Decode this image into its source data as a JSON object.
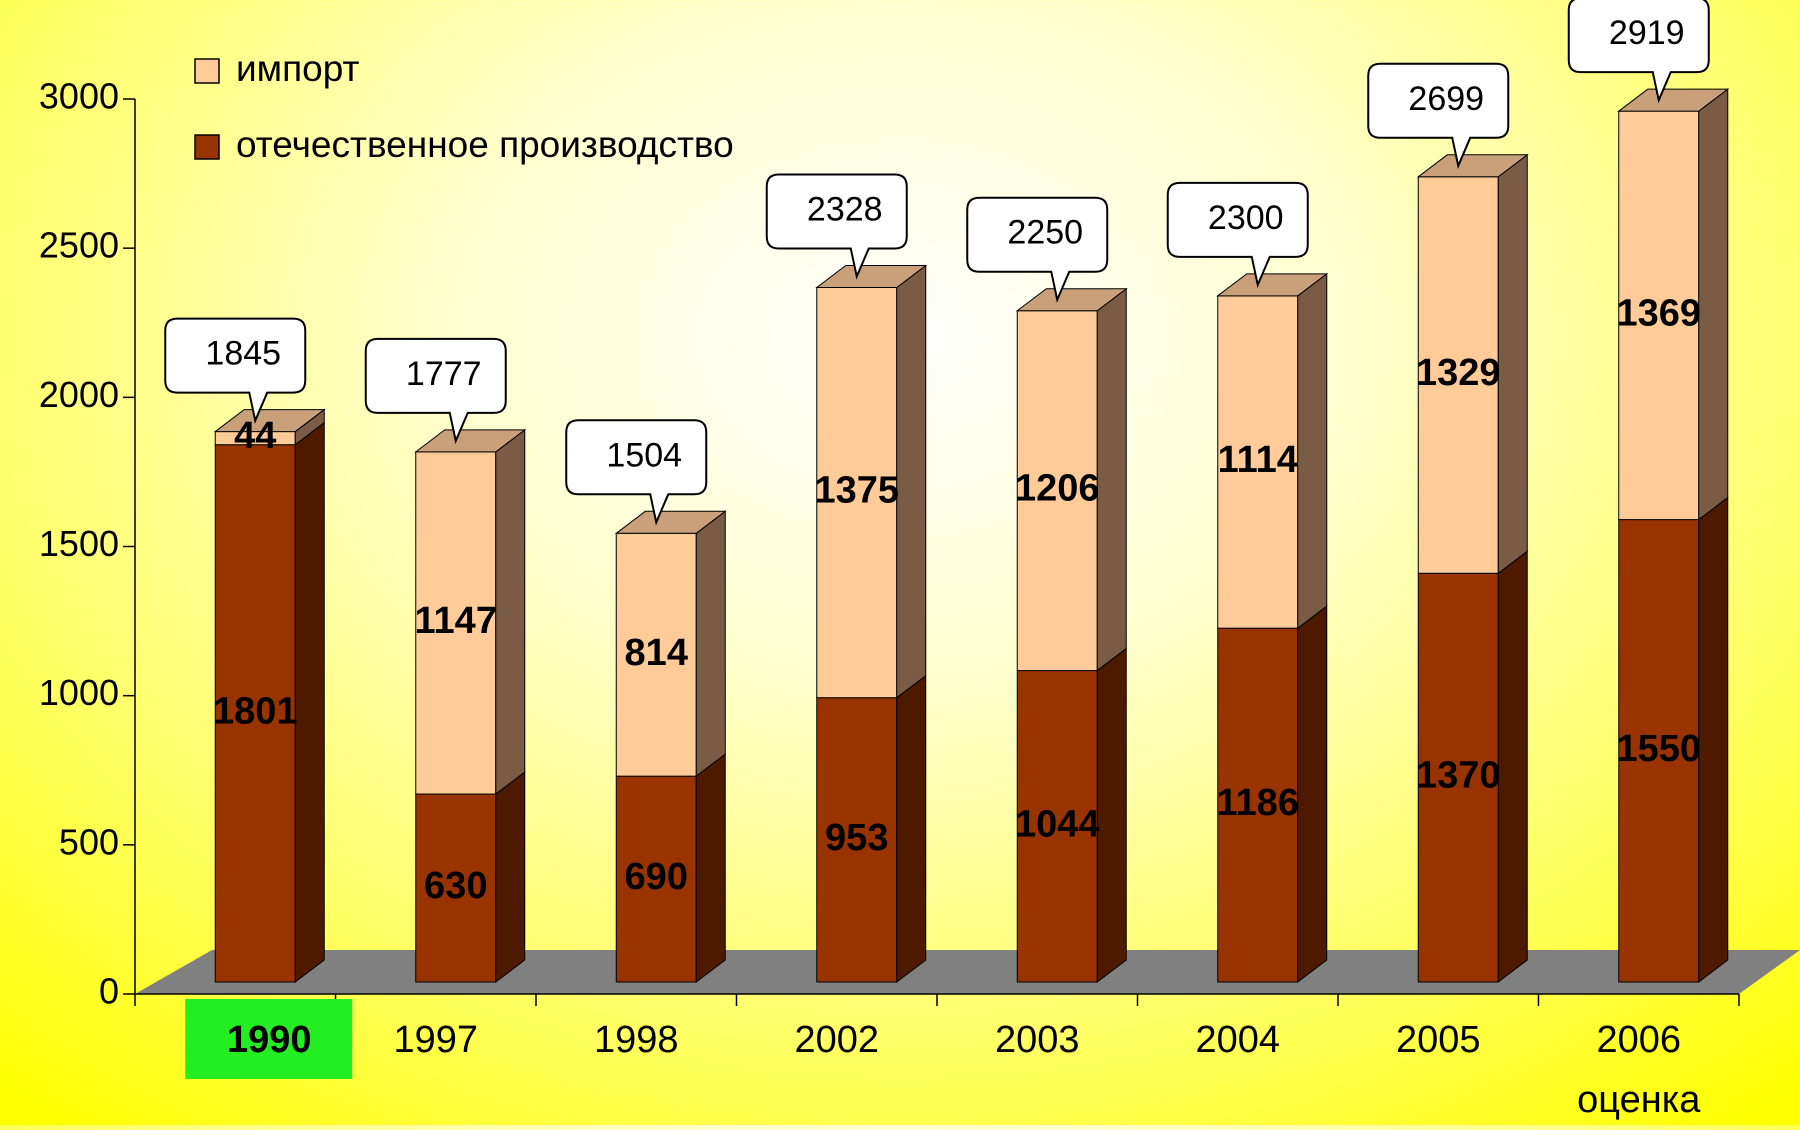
{
  "chart_data": {
    "type": "stacked_bar_3d",
    "categories": [
      "1990",
      "1997",
      "1998",
      "2002",
      "2003",
      "2004",
      "2005",
      "2006\nоценка"
    ],
    "category_label_backgrounds": [
      "#22ee22",
      null,
      null,
      null,
      null,
      null,
      null,
      null
    ],
    "series": [
      {
        "name": "импорт",
        "color": "#ffcc99",
        "side_color": "#7a5c45",
        "values": [
          44,
          1147,
          814,
          1375,
          1206,
          1114,
          1329,
          1369
        ]
      },
      {
        "name": "отечественное производство",
        "color": "#993300",
        "side_color": "#4d1a00",
        "values": [
          1801,
          630,
          690,
          953,
          1044,
          1186,
          1370,
          1550
        ]
      }
    ],
    "totals": [
      1845,
      1777,
      1504,
      2328,
      2250,
      2300,
      2699,
      2919
    ],
    "ylim": [
      0,
      3000
    ],
    "yticks": [
      0,
      500,
      1000,
      1500,
      2000,
      2500,
      3000
    ],
    "grid": false,
    "legend": "top-left"
  }
}
